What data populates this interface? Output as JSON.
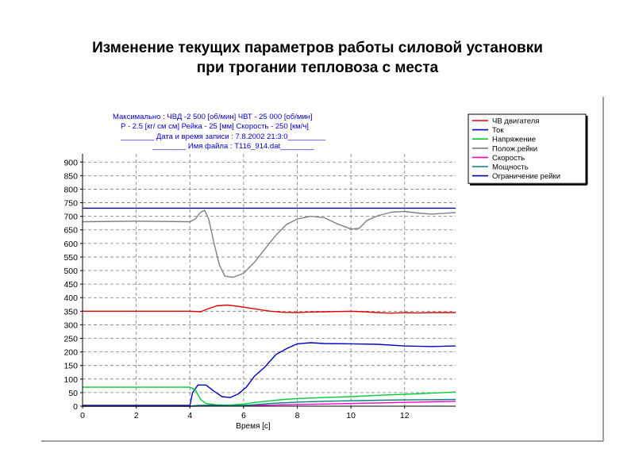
{
  "slide": {
    "title_line1": "Изменение текущих параметров работы силовой установки",
    "title_line2": "при трогании тепловоза с места"
  },
  "info": {
    "line1": "Максимально :   ЧВД -2 500  [об/мин]    ЧВТ - 25 000 [об/мин]",
    "line2": "Р - 2.5 [кг/ см см]   Рейка - 25 [мм]  Скорость - 250 [км/ч]",
    "line3": "________ Дата и время записи : 7.8.2002 21:3:0_________",
    "line4": "________ Имя файла : Т116_914.dat________"
  },
  "colors": {
    "background": "#ffffff",
    "grid": "#7a7a7a",
    "info_text": "#0000cc",
    "frame": "#808080"
  },
  "chart_data": {
    "type": "line",
    "title": "",
    "xlabel": "Время [с]",
    "ylabel": "",
    "xlim": [
      0,
      13.9
    ],
    "ylim": [
      0,
      930
    ],
    "x_ticks": [
      0,
      2,
      4,
      6,
      8,
      10,
      12
    ],
    "y_ticks": [
      0,
      50,
      100,
      150,
      200,
      250,
      300,
      350,
      400,
      450,
      500,
      550,
      600,
      650,
      700,
      750,
      800,
      850,
      900
    ],
    "grid": true,
    "legend_position": "top-right",
    "series": [
      {
        "name": "ЧВ двигателя",
        "color": "#e00000",
        "x": [
          0,
          4.0,
          4.4,
          4.7,
          5.0,
          5.4,
          5.8,
          6.2,
          6.6,
          7.0,
          7.5,
          8.0,
          8.5,
          9.0,
          9.5,
          10.0,
          10.5,
          11.0,
          11.5,
          12.0,
          12.5,
          13.0,
          13.9
        ],
        "y": [
          350,
          350,
          348,
          360,
          370,
          373,
          368,
          362,
          356,
          350,
          346,
          345,
          347,
          348,
          349,
          350,
          348,
          345,
          343,
          345,
          344,
          345,
          345
        ]
      },
      {
        "name": "Ток",
        "color": "#0000cc",
        "x": [
          0,
          4.0,
          4.1,
          4.3,
          4.6,
          4.9,
          5.2,
          5.5,
          5.8,
          6.1,
          6.4,
          6.8,
          7.2,
          7.6,
          8.0,
          8.5,
          9.0,
          10.0,
          11.0,
          12.0,
          13.0,
          13.9
        ],
        "y": [
          3,
          3,
          50,
          78,
          78,
          55,
          35,
          32,
          45,
          70,
          110,
          145,
          190,
          212,
          230,
          234,
          231,
          230,
          228,
          222,
          220,
          222
        ]
      },
      {
        "name": "Напряжение",
        "color": "#00cc33",
        "x": [
          0,
          4.0,
          4.2,
          4.4,
          4.6,
          5.0,
          5.5,
          6.0,
          6.5,
          7.0,
          7.5,
          8.0,
          9.0,
          10.0,
          11.0,
          12.0,
          13.0,
          13.9
        ],
        "y": [
          70,
          70,
          60,
          25,
          10,
          5,
          4,
          8,
          15,
          20,
          25,
          28,
          32,
          35,
          40,
          44,
          48,
          52
        ]
      },
      {
        "name": "Полож.рейки",
        "color": "#808080",
        "x": [
          0,
          2,
          4.0,
          4.2,
          4.4,
          4.55,
          4.7,
          4.9,
          5.1,
          5.3,
          5.6,
          6.0,
          6.4,
          6.8,
          7.2,
          7.6,
          8.0,
          8.5,
          9.0,
          9.5,
          10.0,
          10.3,
          10.6,
          11.0,
          11.5,
          12.0,
          12.5,
          13.0,
          13.9
        ],
        "y": [
          680,
          682,
          680,
          690,
          715,
          722,
          690,
          600,
          520,
          480,
          475,
          490,
          530,
          580,
          630,
          670,
          690,
          700,
          695,
          672,
          653,
          655,
          685,
          702,
          715,
          718,
          712,
          708,
          714
        ]
      },
      {
        "name": "Скорость",
        "color": "#ff00cc",
        "x": [
          0,
          4.0,
          5.0,
          6.0,
          7.0,
          8.0,
          9.0,
          10.0,
          11.0,
          12.0,
          13.0,
          13.9
        ],
        "y": [
          0,
          0,
          1,
          2,
          4,
          6,
          8,
          10,
          12,
          14,
          16,
          18
        ]
      },
      {
        "name": "Мощность",
        "color": "#008080",
        "x": [
          0,
          4.0,
          4.3,
          4.8,
          5.5,
          6.0,
          6.5,
          7.0,
          8.0,
          9.0,
          10.0,
          11.0,
          12.0,
          13.0,
          13.9
        ],
        "y": [
          0,
          0,
          3,
          4,
          2,
          3,
          6,
          10,
          15,
          18,
          20,
          22,
          23,
          24,
          25
        ]
      },
      {
        "name": "Ограничение рейки",
        "color": "#000099",
        "x": [
          0,
          13.9
        ],
        "y": [
          730,
          730
        ]
      }
    ]
  }
}
